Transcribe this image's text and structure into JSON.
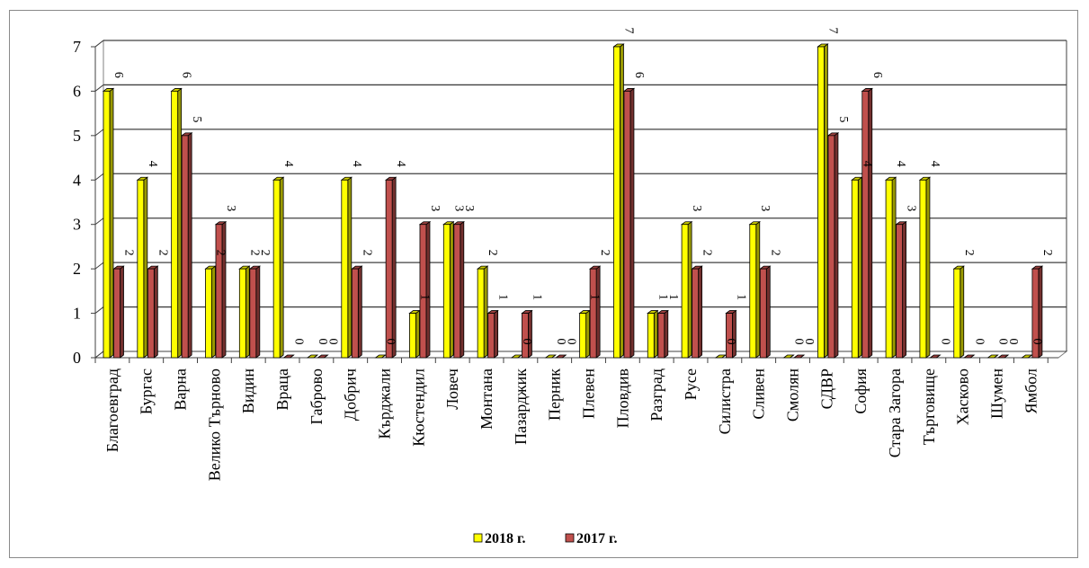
{
  "chart_data": {
    "type": "bar",
    "three_d": true,
    "categories": [
      "Благоевград",
      "Бургас",
      "Варна",
      "Велико Търново",
      "Видин",
      "Враца",
      "Габрово",
      "Добрич",
      "Кърджали",
      "Кюстендил",
      "Ловеч",
      "Монтана",
      "Пазарджик",
      "Перник",
      "Плевен",
      "Пловдив",
      "Разград",
      "Русе",
      "Силистра",
      "Сливен",
      "Смолян",
      "СДВР",
      "София",
      "Стара Загора",
      "Търговище",
      "Хасково",
      "Шумен",
      "Ямбол"
    ],
    "series": [
      {
        "name": "2018 г.",
        "values": [
          6,
          4,
          6,
          2,
          2,
          4,
          0,
          4,
          0,
          1,
          3,
          2,
          0,
          0,
          1,
          7,
          1,
          3,
          0,
          3,
          0,
          7,
          4,
          4,
          4,
          2,
          0,
          0
        ],
        "color": "#ffff00"
      },
      {
        "name": "2017 г.",
        "values": [
          2,
          2,
          5,
          3,
          2,
          0,
          0,
          2,
          4,
          3,
          3,
          1,
          1,
          0,
          2,
          6,
          1,
          2,
          1,
          2,
          0,
          5,
          6,
          3,
          0,
          0,
          0,
          2
        ],
        "color": "#c0504d"
      }
    ],
    "y_ticks": [
      "0",
      "1",
      "2",
      "3",
      "4",
      "5",
      "6",
      "7"
    ],
    "ylim": [
      0,
      7
    ],
    "grid": true,
    "legend_position": "bottom",
    "data_labels": true,
    "title": "",
    "xlabel": "",
    "ylabel": ""
  }
}
